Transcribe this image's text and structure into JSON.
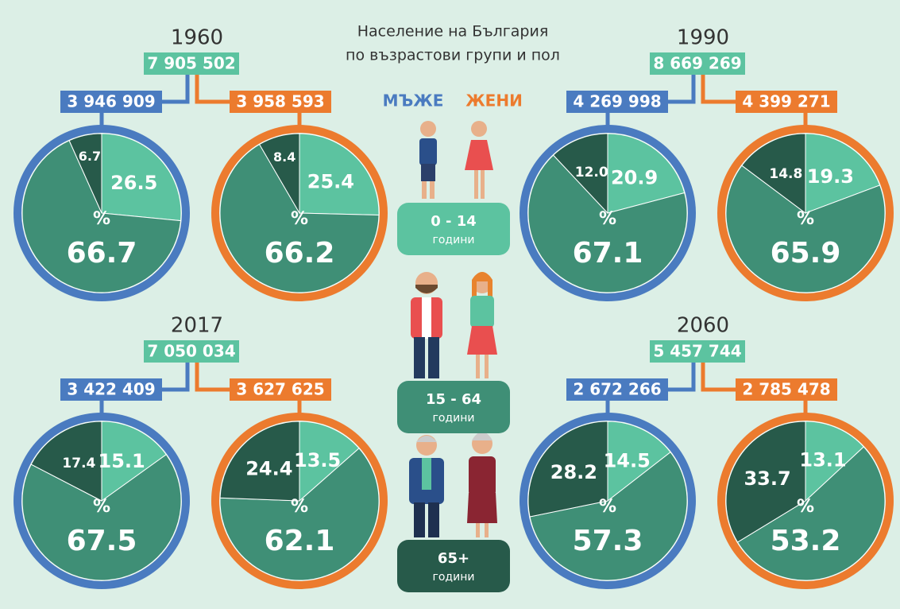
{
  "title": [
    "Население на България",
    "по възрастови групи и пол"
  ],
  "legend": {
    "men": "МЪЖЕ",
    "women": "ЖЕНИ"
  },
  "age_groups": [
    {
      "range": "0 - 14",
      "unit": "години",
      "color": "#5cc3a0"
    },
    {
      "range": "15 - 64",
      "unit": "години",
      "color": "#3f8f76"
    },
    {
      "range": "65+",
      "unit": "години",
      "color": "#275a4a"
    }
  ],
  "percent_sign": "%",
  "panels": [
    {
      "year": "1960",
      "total": "7 905 502"
    },
    {
      "year": "1990",
      "total": "8 669 269"
    },
    {
      "year": "2017",
      "total": "7 050 034"
    },
    {
      "year": "2060",
      "total": "5 457 744"
    }
  ],
  "chart_data": [
    {
      "type": "pie",
      "label": "3 946 909",
      "color": "#4a7bc0",
      "values": [
        26.5,
        66.7,
        6.7
      ],
      "value_labels": [
        "26.5",
        "66.7",
        "6.7"
      ],
      "colors": [
        "#5cc3a0",
        "#3f8f76",
        "#275a4a"
      ]
    },
    {
      "type": "pie",
      "label": "3 958 593",
      "color": "#ec7b2e",
      "values": [
        25.4,
        66.2,
        8.4
      ],
      "value_labels": [
        "25.4",
        "66.2",
        "8.4"
      ],
      "colors": [
        "#5cc3a0",
        "#3f8f76",
        "#275a4a"
      ]
    },
    {
      "type": "pie",
      "label": "4 269 998",
      "color": "#4a7bc0",
      "values": [
        20.9,
        67.1,
        12.0
      ],
      "value_labels": [
        "20.9",
        "67.1",
        "12.0"
      ],
      "colors": [
        "#5cc3a0",
        "#3f8f76",
        "#275a4a"
      ]
    },
    {
      "type": "pie",
      "label": "4 399 271",
      "color": "#ec7b2e",
      "values": [
        19.3,
        65.9,
        14.8
      ],
      "value_labels": [
        "19.3",
        "65.9",
        "14.8"
      ],
      "colors": [
        "#5cc3a0",
        "#3f8f76",
        "#275a4a"
      ]
    },
    {
      "type": "pie",
      "label": "3 422 409",
      "color": "#4a7bc0",
      "values": [
        15.1,
        67.5,
        17.4
      ],
      "value_labels": [
        "15.1",
        "67.5",
        "17.4"
      ],
      "colors": [
        "#5cc3a0",
        "#3f8f76",
        "#275a4a"
      ]
    },
    {
      "type": "pie",
      "label": "3 627 625",
      "color": "#ec7b2e",
      "values": [
        13.5,
        62.1,
        24.4
      ],
      "value_labels": [
        "13.5",
        "62.1",
        "24.4"
      ],
      "colors": [
        "#5cc3a0",
        "#3f8f76",
        "#275a4a"
      ]
    },
    {
      "type": "pie",
      "label": "2 672 266",
      "color": "#4a7bc0",
      "values": [
        14.5,
        57.3,
        28.2
      ],
      "value_labels": [
        "14.5",
        "57.3",
        "28.2"
      ],
      "colors": [
        "#5cc3a0",
        "#3f8f76",
        "#275a4a"
      ]
    },
    {
      "type": "pie",
      "label": "2 785 478",
      "color": "#ec7b2e",
      "values": [
        13.1,
        53.2,
        33.7
      ],
      "value_labels": [
        "13.1",
        "53.2",
        "33.7"
      ],
      "colors": [
        "#5cc3a0",
        "#3f8f76",
        "#275a4a"
      ]
    }
  ]
}
